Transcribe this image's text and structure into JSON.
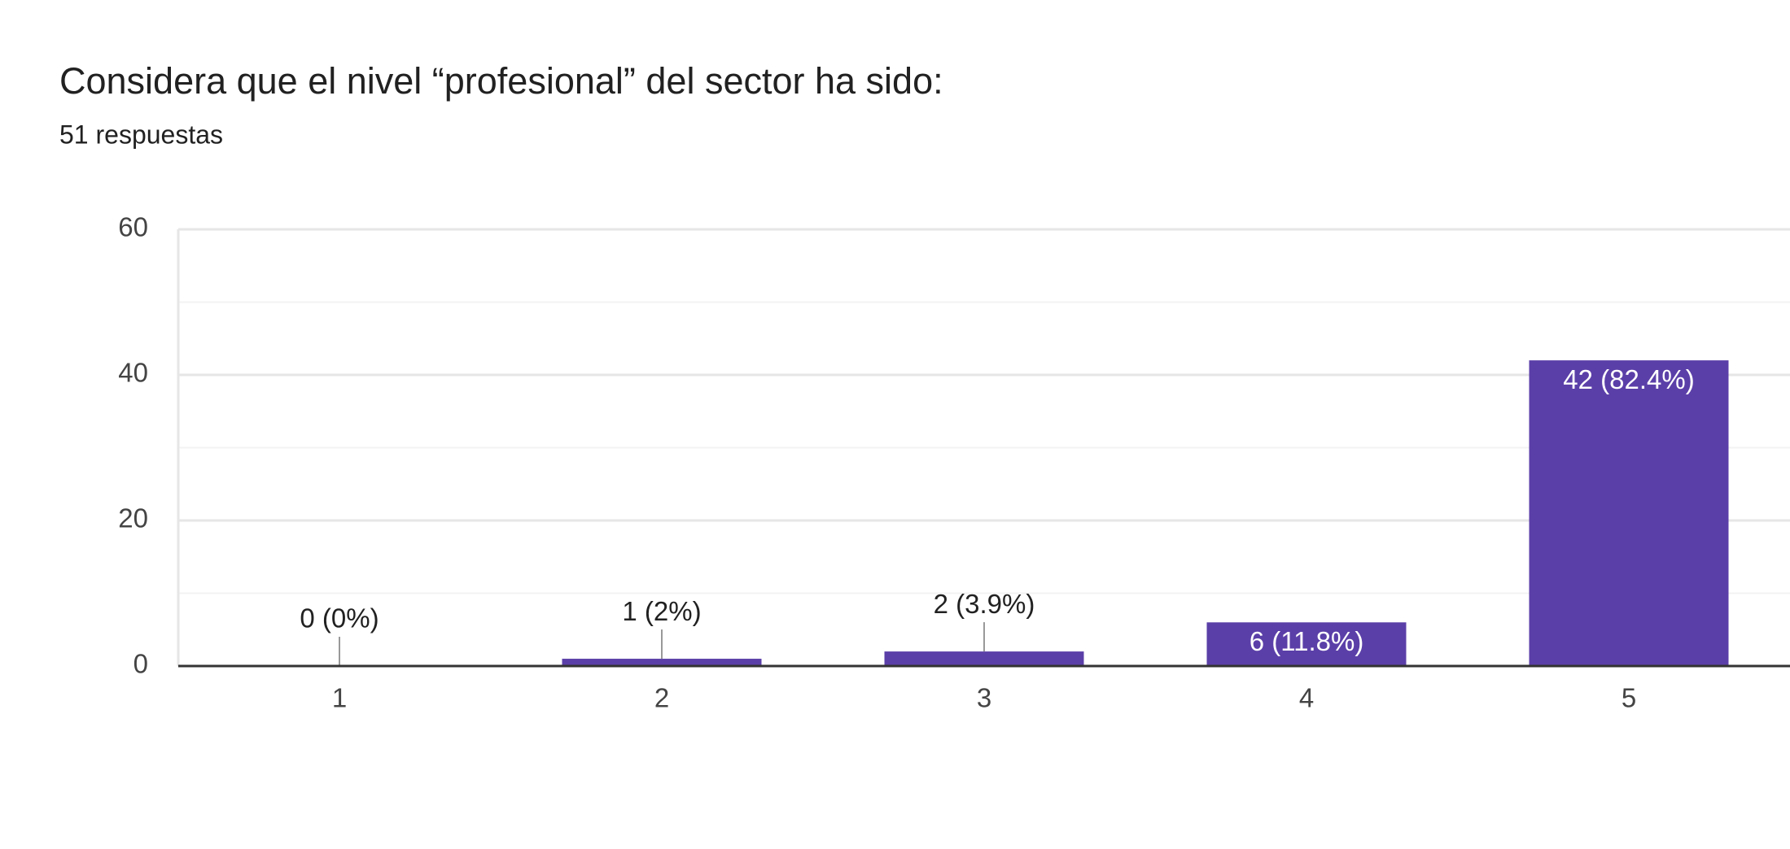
{
  "chart_data": {
    "type": "bar",
    "title": "Considera que el nivel “profesional” del sector ha sido:",
    "subtitle": "51 respuestas",
    "categories": [
      "1",
      "2",
      "3",
      "4",
      "5"
    ],
    "values": [
      0,
      1,
      2,
      6,
      42
    ],
    "value_labels": [
      "0 (0%)",
      "1 (2%)",
      "2 (3.9%)",
      "6 (11.8%)",
      "42 (82.4%)"
    ],
    "color": "#5b3fa8",
    "ylim": [
      0,
      60
    ],
    "yticks": [
      0,
      20,
      40,
      60
    ],
    "minor_yticks": [
      10,
      30,
      50
    ],
    "grid": true
  }
}
